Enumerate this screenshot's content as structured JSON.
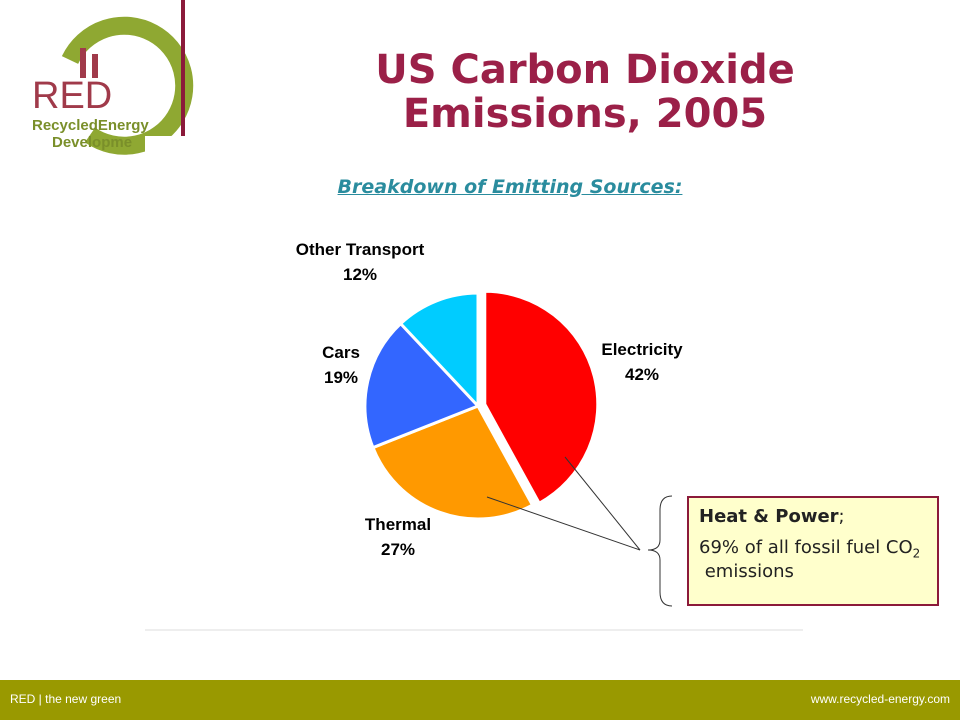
{
  "logo": {
    "mark": "RED",
    "line1": "RecycledEnergy",
    "line2": "Developme"
  },
  "chart_data": {
    "type": "pie",
    "title": "US Carbon Dioxide Emissions, 2005",
    "subtitle": "Breakdown of Emitting Sources:",
    "categories": [
      "Electricity",
      "Thermal",
      "Cars",
      "Other Transport"
    ],
    "values": [
      42,
      27,
      19,
      12
    ],
    "value_labels": [
      "42%",
      "27%",
      "19%",
      "12%"
    ],
    "colors": [
      "#ff0000",
      "#ff9900",
      "#3366ff",
      "#00ccff"
    ],
    "annotation": {
      "heading": "Heat & Power",
      "heading_suffix": ";",
      "body": "69% of all fossil fuel CO",
      "body_sub": "2",
      "body_end": " emissions"
    }
  },
  "footer": {
    "left": "RED | the new green",
    "right": "www.recycled-energy.com"
  }
}
